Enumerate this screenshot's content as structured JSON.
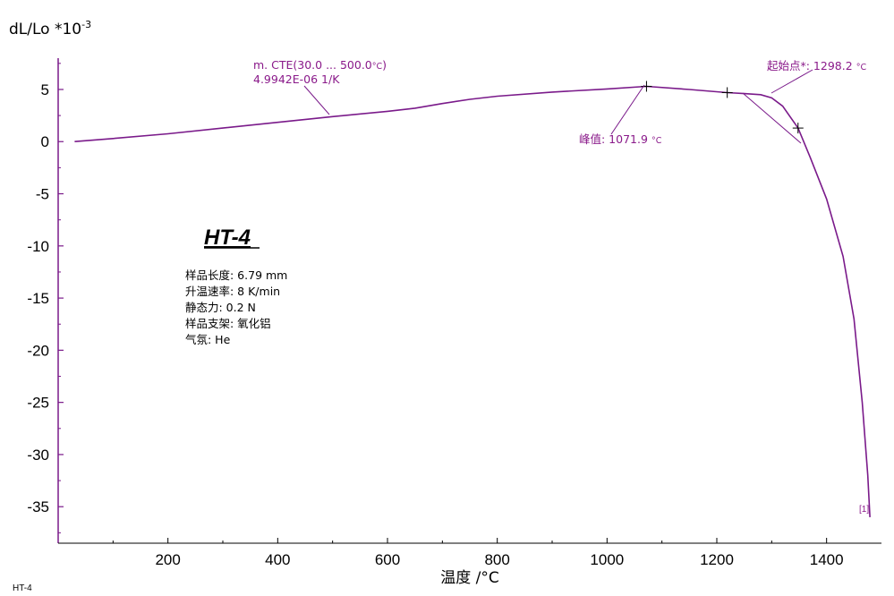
{
  "chart_data": {
    "type": "line",
    "ylabel_main": "dL/Lo *10",
    "ylabel_exp": "-3",
    "xlabel": "温度 /°C",
    "xlim": [
      0,
      1500
    ],
    "ylim": [
      -38.5,
      8
    ],
    "xticks": [
      200,
      400,
      600,
      800,
      1000,
      1200,
      1400
    ],
    "yticks": [
      5,
      0,
      -5,
      -10,
      -15,
      -20,
      -25,
      -30,
      -35
    ],
    "grid": false,
    "series": [
      {
        "tag": "[1]",
        "color": "#7a1a8a",
        "points": [
          [
            30,
            0.0
          ],
          [
            100,
            0.3
          ],
          [
            200,
            0.75
          ],
          [
            300,
            1.3
          ],
          [
            400,
            1.85
          ],
          [
            500,
            2.4
          ],
          [
            600,
            2.9
          ],
          [
            650,
            3.2
          ],
          [
            700,
            3.65
          ],
          [
            750,
            4.05
          ],
          [
            800,
            4.35
          ],
          [
            900,
            4.75
          ],
          [
            1000,
            5.05
          ],
          [
            1071.9,
            5.3
          ],
          [
            1150,
            5.0
          ],
          [
            1219,
            4.7
          ],
          [
            1250,
            4.6
          ],
          [
            1280,
            4.5
          ],
          [
            1300,
            4.2
          ],
          [
            1320,
            3.4
          ],
          [
            1348,
            1.3
          ],
          [
            1370,
            -1.5
          ],
          [
            1400,
            -5.5
          ],
          [
            1430,
            -11
          ],
          [
            1450,
            -17
          ],
          [
            1465,
            -25
          ],
          [
            1475,
            -32
          ],
          [
            1479,
            -36
          ]
        ]
      }
    ],
    "annotations": {
      "cte_line1": "m. CTE(30.0 ... 500.0",
      "cte_unit": "°C",
      "cte_close": ")",
      "cte_line2": "4.9942E-06 1/K",
      "onset_label": "起始点*: 1298.2",
      "onset_unit": "°C",
      "peak_label": "峰值: 1071.9",
      "peak_unit": "°C"
    },
    "markers": [
      {
        "x": 1071.9,
        "y": 5.3
      },
      {
        "x": 1219,
        "y": 4.7
      },
      {
        "x": 1348,
        "y": 1.3
      }
    ]
  },
  "sample": {
    "title": "HT-4",
    "info": [
      "样品长度:  6.79 mm",
      "升温速率:  8 K/min",
      "静态力:  0.2 N",
      "样品支架:  氧化铝",
      "气氛:  He"
    ]
  },
  "footer_label": "HT-4"
}
